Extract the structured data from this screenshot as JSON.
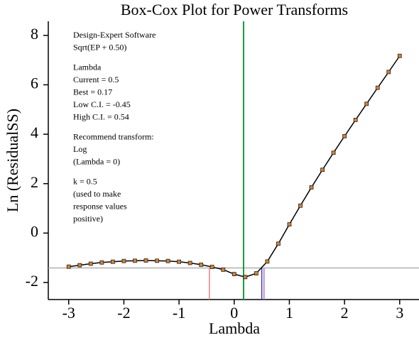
{
  "chart_data": {
    "type": "line",
    "title": "Box-Cox Plot for Power Transforms",
    "xlabel": "Lambda",
    "ylabel": "Ln (ResidualSS)",
    "x": [
      -3.0,
      -2.8,
      -2.6,
      -2.4,
      -2.2,
      -2.0,
      -1.8,
      -1.6,
      -1.4,
      -1.2,
      -1.0,
      -0.8,
      -0.6,
      -0.4,
      -0.2,
      0.0,
      0.2,
      0.4,
      0.6,
      0.8,
      1.0,
      1.2,
      1.4,
      1.6,
      1.8,
      2.0,
      2.2,
      2.4,
      2.6,
      2.8,
      3.0
    ],
    "values": [
      -1.36,
      -1.3,
      -1.24,
      -1.19,
      -1.16,
      -1.13,
      -1.12,
      -1.11,
      -1.12,
      -1.13,
      -1.16,
      -1.21,
      -1.28,
      -1.37,
      -1.48,
      -1.66,
      -1.78,
      -1.63,
      -1.15,
      -0.43,
      0.35,
      1.11,
      1.85,
      2.56,
      3.25,
      3.92,
      4.58,
      5.23,
      5.88,
      6.52,
      7.17
    ],
    "color": "#000000",
    "marker_color": "#d9822b",
    "xlim": [
      -3.37,
      3.35
    ],
    "ylim": [
      -2.69,
      8.57
    ],
    "xticks": [
      -3,
      -2,
      -1,
      0,
      1,
      2,
      3
    ],
    "yticks": [
      -2,
      0,
      2,
      4,
      6,
      8
    ],
    "grid": false,
    "reference_lines": {
      "best": {
        "x": 0.17,
        "color": "#1a9a3a"
      },
      "current": {
        "x": 0.5,
        "color": "#3b3bb0"
      },
      "low_ci": {
        "x": -0.45,
        "color": "#e88080"
      },
      "high_ci": {
        "x": 0.54,
        "color": "#b070d0"
      },
      "ci_threshold": {
        "y": -1.41,
        "color": "#b0b0b0"
      }
    },
    "annotations": [
      [
        "Design-Expert Software",
        "Sqrt(EP + 0.50)"
      ],
      [
        "Lambda",
        "Current = 0.5",
        "Best = 0.17",
        "Low C.I. = -0.45",
        "High C.I. = 0.54"
      ],
      [
        "Recommend transform:",
        "Log",
        "(Lambda = 0)"
      ],
      [
        "k = 0.5",
        "(used to make",
        "response values",
        "positive)"
      ]
    ]
  }
}
